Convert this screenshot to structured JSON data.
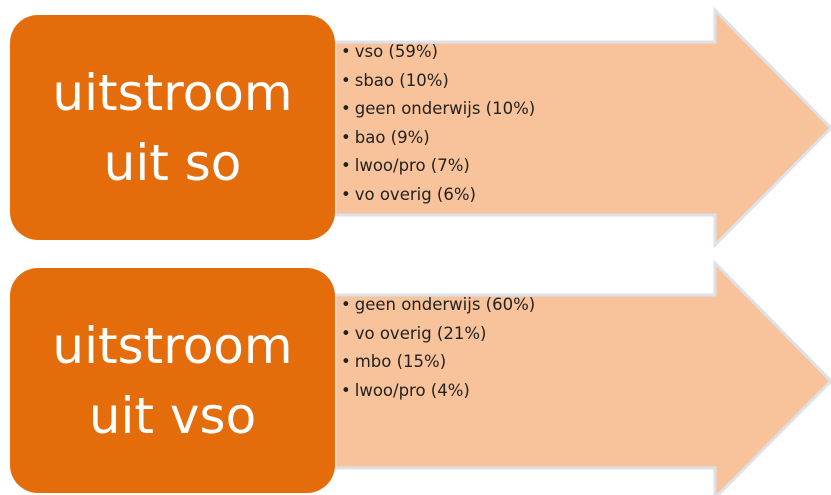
{
  "diagram": {
    "flows": [
      {
        "label": "uitstroom uit so",
        "items": [
          "vso (59%)",
          "sbao (10%)",
          "geen onderwijs (10%)",
          "bao (9%)",
          "lwoo/pro (7%)",
          "vo overig (6%)"
        ]
      },
      {
        "label": "uitstroom uit vso",
        "items": [
          "geen onderwijs (60%)",
          "vo overig (21%)",
          "mbo (15%)",
          "lwoo/pro (4%)"
        ]
      }
    ]
  }
}
